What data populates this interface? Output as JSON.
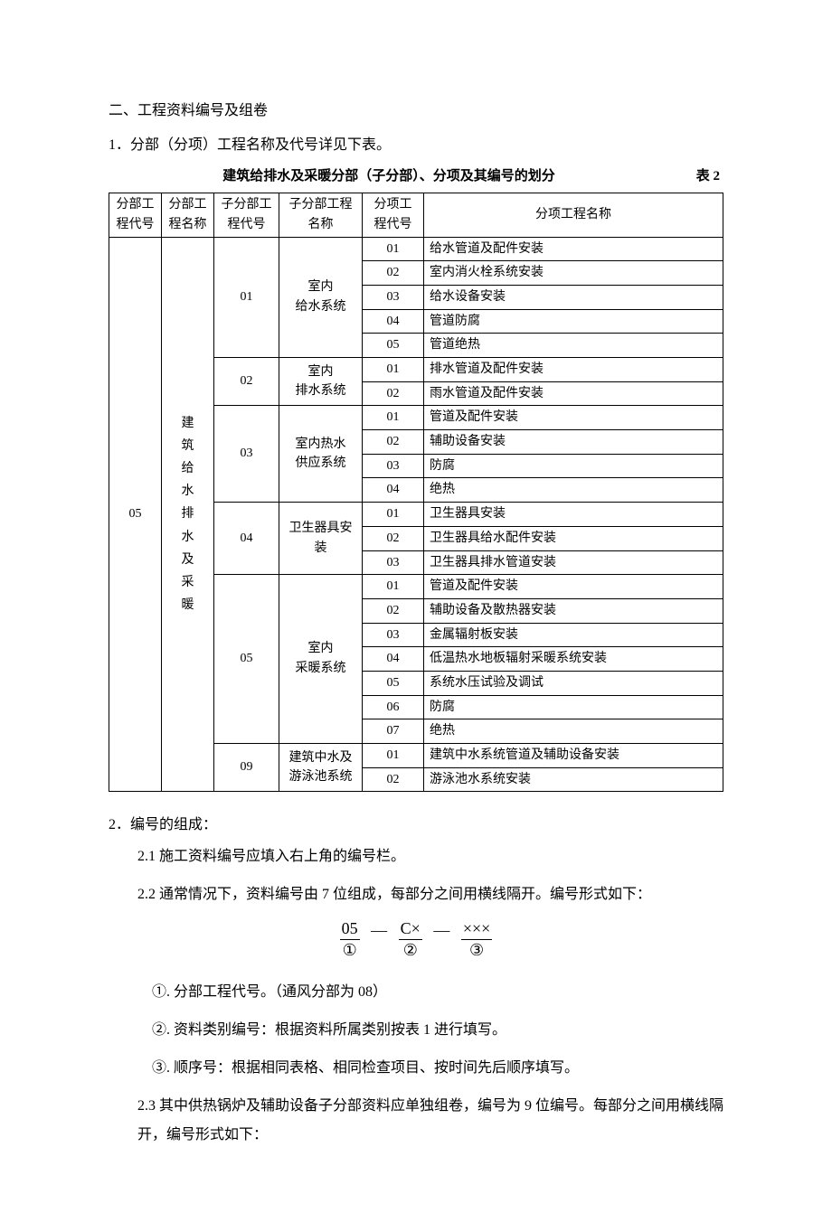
{
  "heading": "二、工程资料编号及组卷",
  "sub1": "1．分部（分项）工程名称及代号详见下表。",
  "table_title": "建筑给排水及采暖分部（子分部）、分项及其编号的划分",
  "table_label": "表 2",
  "headers": {
    "c1": "分部工程代号",
    "c2": "分部工程名称",
    "c3": "子分部工程代号",
    "c4": "子分部工程名称",
    "c5": "分项工程代号",
    "c6": "分项工程名称"
  },
  "col1": "05",
  "col2chars": [
    "建",
    "筑",
    "给",
    "水",
    "排",
    "水",
    "及",
    "采",
    "暖"
  ],
  "groups": [
    {
      "sub_code": "01",
      "sub_name": "室内\n给水系统",
      "items": [
        {
          "code": "01",
          "name": "给水管道及配件安装"
        },
        {
          "code": "02",
          "name": "室内消火栓系统安装"
        },
        {
          "code": "03",
          "name": "给水设备安装"
        },
        {
          "code": "04",
          "name": "管道防腐"
        },
        {
          "code": "05",
          "name": "管道绝热"
        }
      ]
    },
    {
      "sub_code": "02",
      "sub_name": "室内\n排水系统",
      "items": [
        {
          "code": "01",
          "name": "排水管道及配件安装"
        },
        {
          "code": "02",
          "name": "雨水管道及配件安装"
        }
      ]
    },
    {
      "sub_code": "03",
      "sub_name": "室内热水\n供应系统",
      "items": [
        {
          "code": "01",
          "name": "管道及配件安装"
        },
        {
          "code": "02",
          "name": "辅助设备安装"
        },
        {
          "code": "03",
          "name": "防腐"
        },
        {
          "code": "04",
          "name": "绝热"
        }
      ]
    },
    {
      "sub_code": "04",
      "sub_name": "卫生器具安装",
      "items": [
        {
          "code": "01",
          "name": "卫生器具安装"
        },
        {
          "code": "02",
          "name": "卫生器具给水配件安装"
        },
        {
          "code": "03",
          "name": "卫生器具排水管道安装"
        }
      ]
    },
    {
      "sub_code": "05",
      "sub_name": "室内\n采暖系统",
      "items": [
        {
          "code": "01",
          "name": "管道及配件安装"
        },
        {
          "code": "02",
          "name": "辅助设备及散热器安装"
        },
        {
          "code": "03",
          "name": "金属辐射板安装"
        },
        {
          "code": "04",
          "name": "低温热水地板辐射采暖系统安装"
        },
        {
          "code": "05",
          "name": "系统水压试验及调试"
        },
        {
          "code": "06",
          "name": "防腐"
        },
        {
          "code": "07",
          "name": "绝热"
        }
      ]
    },
    {
      "sub_code": "09",
      "sub_name": "建筑中水及游泳池系统",
      "items": [
        {
          "code": "01",
          "name": "建筑中水系统管道及辅助设备安装"
        },
        {
          "code": "02",
          "name": "游泳池水系统安装"
        }
      ]
    }
  ],
  "p2": "2．编号的组成：",
  "p2_1": "2.1 施工资料编号应填入右上角的编号栏。",
  "p2_2": "2.2 通常情况下，资料编号由 7 位组成，每部分之间用横线隔开。编号形式如下：",
  "formula": {
    "f1t": "05",
    "f1b": "①",
    "f2t": "C×",
    "f2b": "②",
    "f3t": "×××",
    "f3b": "③",
    "dash": "—"
  },
  "li1": "①. 分部工程代号。（通风分部为 08）",
  "li2": "②. 资料类别编号：根据资料所属类别按表 1 进行填写。",
  "li3": "③. 顺序号：根据相同表格、相同检查项目、按时间先后顺序填写。",
  "p2_3": "2.3 其中供热锅炉及辅助设备子分部资料应单独组卷，编号为 9 位编号。每部分之间用横线隔开，编号形式如下：",
  "col_widths": {
    "c1": "58px",
    "c2": "58px",
    "c3": "72px",
    "c4": "92px",
    "c5": "68px",
    "c6": "auto"
  }
}
